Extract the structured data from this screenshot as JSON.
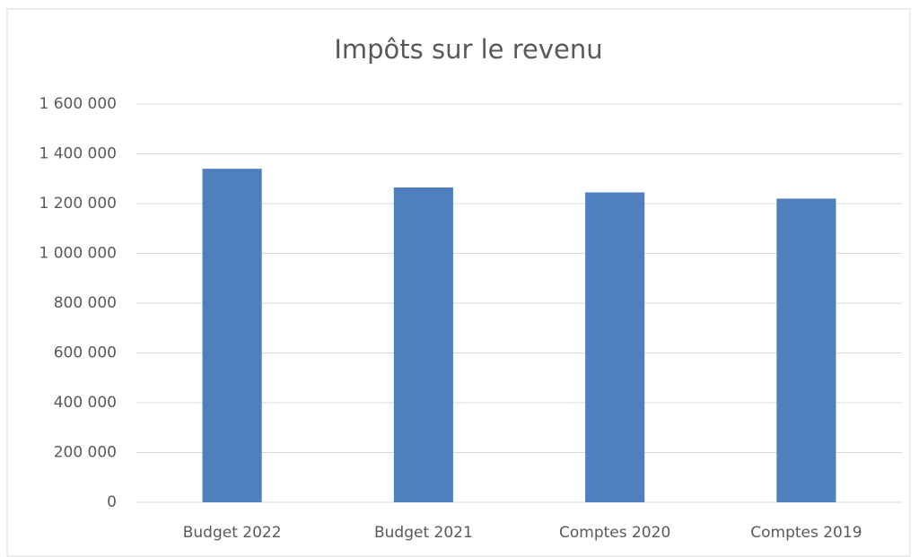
{
  "chart_data": {
    "type": "bar",
    "title": "Impôts sur le revenu",
    "categories": [
      "Budget 2022",
      "Budget 2021",
      "Comptes 2020",
      "Comptes 2019"
    ],
    "values": [
      1340000,
      1265000,
      1245000,
      1220000
    ],
    "color": "#4f7fbc",
    "ylim": [
      0,
      1600000
    ],
    "yticks": [
      0,
      {
        "value": 200000,
        "label": "200 000"
      },
      {
        "value": 400000,
        "label": "400 000"
      },
      {
        "value": 600000,
        "label": "600 000"
      },
      {
        "value": 800000,
        "label": "800 000"
      },
      {
        "value": 1000000,
        "label": "1 000 000"
      },
      {
        "value": 1200000,
        "label": "1 200 000"
      },
      {
        "value": 1400000,
        "label": "1 400 000"
      },
      {
        "value": 1600000,
        "label": "1 600 000"
      }
    ],
    "grid": true
  }
}
